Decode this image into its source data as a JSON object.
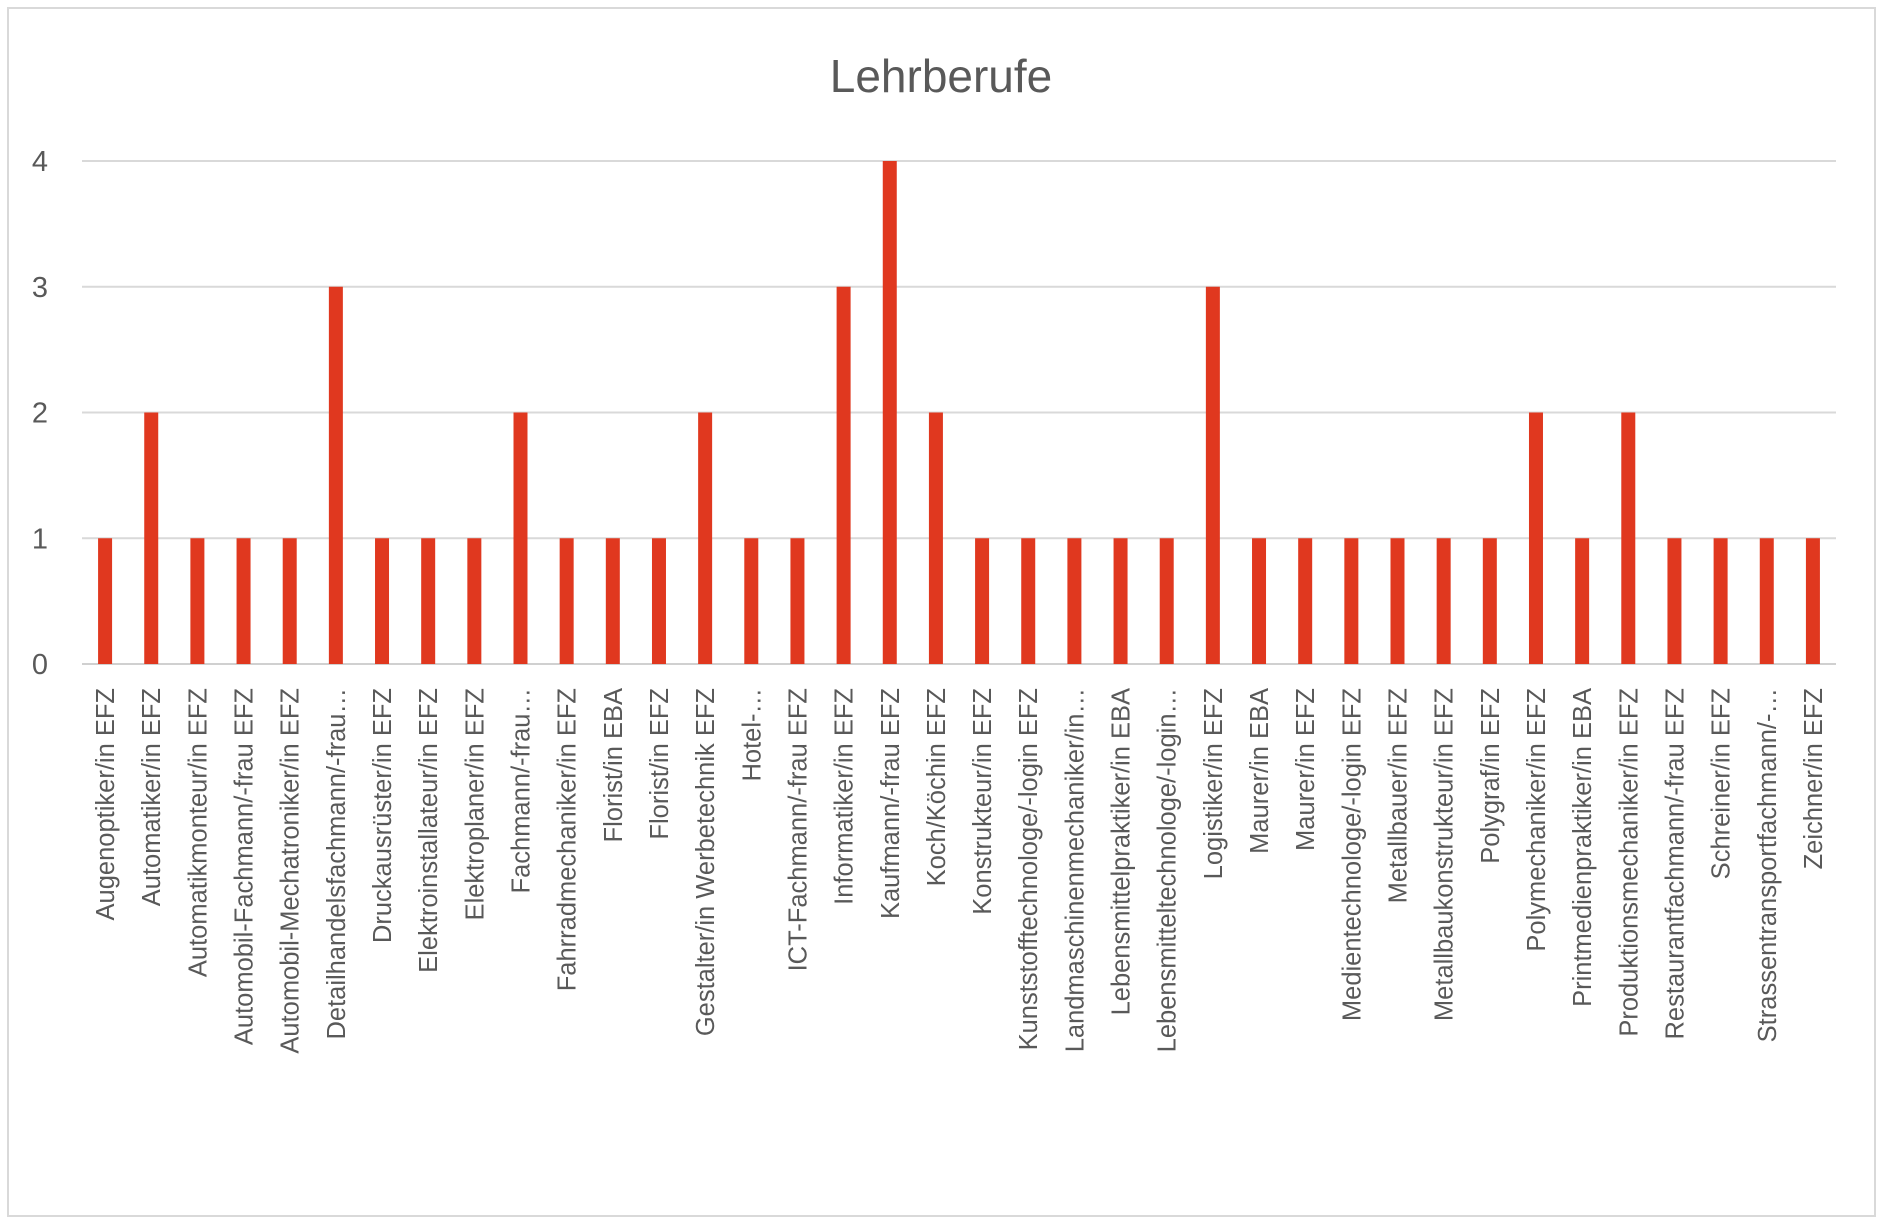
{
  "chart_data": {
    "type": "bar",
    "title": "Lehrberufe",
    "xlabel": "",
    "ylabel": "",
    "ylim": [
      0,
      4
    ],
    "yticks": [
      "0",
      "1",
      "2",
      "3",
      "4"
    ],
    "grid": true,
    "legend": "none",
    "bar_color": "#e0381f",
    "categories": [
      "Augenoptiker/in EFZ",
      "Automatiker/in EFZ",
      "Automatikmonteur/in EFZ",
      "Automobil-Fachmann/-frau EFZ",
      "Automobil-Mechatroniker/in EFZ",
      "Detailhandelsfachmann/-frau…",
      "Druckausrüster/in EFZ",
      "Elektroinstallateur/in EFZ",
      "Elektroplaner/in EFZ",
      "Fachmann/-frau…",
      "Fahrradmechaniker/in EFZ",
      "Florist/in EBA",
      "Florist/in EFZ",
      "Gestalter/in Werbetechnik EFZ",
      "Hotel-…",
      "ICT-Fachmann/-frau EFZ",
      "Informatiker/in EFZ",
      "Kaufmann/-frau EFZ",
      "Koch/Köchin EFZ",
      "Konstrukteur/in EFZ",
      "Kunststofftechnologe/-login EFZ",
      "Landmaschinenmechaniker/in…",
      "Lebensmittelpraktiker/in EBA",
      "Lebensmitteltechnologe/-login…",
      "Logistiker/in EFZ",
      "Maurer/in EBA",
      "Maurer/in EFZ",
      "Medientechnologe/-login EFZ",
      "Metallbauer/in EFZ",
      "Metallbaukonstrukteur/in EFZ",
      "Polygraf/in EFZ",
      "Polymechaniker/in EFZ",
      "Printmedienpraktiker/in EBA",
      "Produktionsmechaniker/in EFZ",
      "Restaurantfachmann/-frau EFZ",
      "Schreiner/in EFZ",
      "Strassentransportfachmann/-…",
      "Zeichner/in EFZ"
    ],
    "values": [
      1,
      2,
      1,
      1,
      1,
      3,
      1,
      1,
      1,
      2,
      1,
      1,
      1,
      2,
      1,
      1,
      3,
      4,
      2,
      1,
      1,
      1,
      1,
      1,
      3,
      1,
      1,
      1,
      1,
      1,
      1,
      2,
      1,
      2,
      1,
      1,
      1,
      1
    ]
  }
}
